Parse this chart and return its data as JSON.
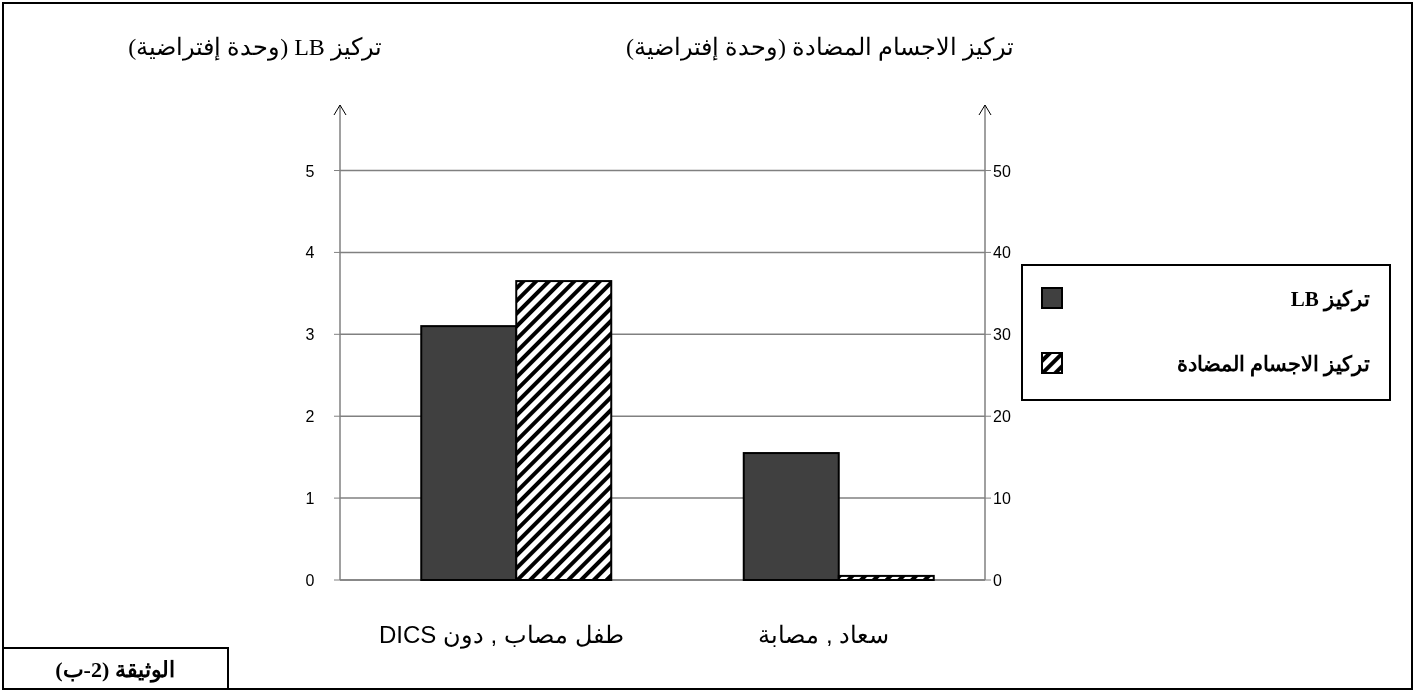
{
  "chart_data": {
    "type": "bar",
    "ylabel": "تركيز LB (وحدة إفتراضية)",
    "y2label": "تركيز الاجسام المضادة (وحدة إفتراضية)",
    "categories": [
      "طفل مصاب , دون DICS",
      "سعاد , مصابة"
    ],
    "series": [
      {
        "name": "تركيز LB",
        "color": "#404040",
        "values": [
          3.1,
          1.55
        ]
      },
      {
        "name": "تركيز الاجسام المضادة",
        "color": "#000000",
        "values": [
          36.5,
          0.5
        ],
        "axis": "y2"
      }
    ],
    "ylim": [
      0,
      5.8
    ],
    "yticks": [
      0,
      1,
      2,
      3,
      4,
      5
    ],
    "y2lim": [
      0,
      58
    ],
    "y2ticks": [
      0,
      10,
      20,
      30,
      40,
      50
    ],
    "grid": "y",
    "legend": "right",
    "annotations": [
      "الوثيقة (2-ب)"
    ]
  }
}
